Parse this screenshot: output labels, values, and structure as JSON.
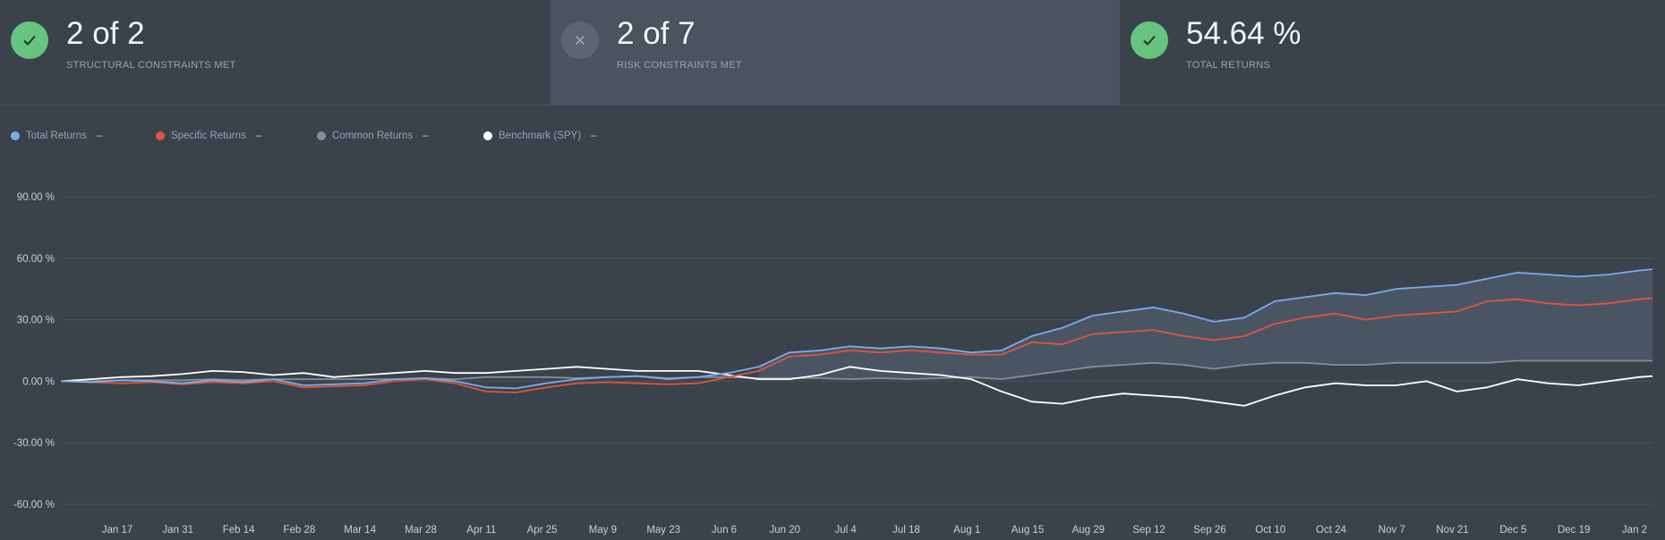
{
  "stats": [
    {
      "value": "2 of 2",
      "label": "STRUCTURAL CONSTRAINTS MET",
      "status": "pass",
      "icon": "check-icon"
    },
    {
      "value": "2 of 7",
      "label": "RISK CONSTRAINTS MET",
      "status": "fail",
      "icon": "x-icon"
    },
    {
      "value": "54.64 %",
      "label": "TOTAL RETURNS",
      "status": "pass",
      "icon": "check-icon"
    }
  ],
  "colors": {
    "pass_badge": "#66c47e",
    "fail_badge": "#5d6670",
    "total": "#7aacec",
    "specific": "#e0543c",
    "common": "#858e98",
    "benchmark": "#ffffff",
    "area_fill": "#4d5867",
    "grid": "#4a535d",
    "axis_text": "#c9cfd5"
  },
  "legend": [
    {
      "name": "Total Returns",
      "value": "–"
    },
    {
      "name": "Specific Returns",
      "value": "–"
    },
    {
      "name": "Common Returns",
      "value": "–"
    },
    {
      "name": "Benchmark (SPY)",
      "value": "–"
    }
  ],
  "chart_data": {
    "type": "line",
    "title": "",
    "xlabel": "",
    "ylabel": "",
    "ylim": [
      -60,
      90
    ],
    "y_ticks": [
      90,
      60,
      30,
      0,
      -30,
      -60
    ],
    "y_tick_labels": [
      "90.00 %",
      "60.00 %",
      "30.00 %",
      "0.00 %",
      "-30.00 %",
      "-60.00 %"
    ],
    "x_tick_labels": [
      "Jan 17",
      "Jan 31",
      "Feb 14",
      "Feb 28",
      "Mar 14",
      "Mar 28",
      "Apr 11",
      "Apr 25",
      "May 9",
      "May 23",
      "Jun 6",
      "Jun 20",
      "Jul 4",
      "Jul 18",
      "Aug 1",
      "Aug 15",
      "Aug 29",
      "Sep 12",
      "Sep 26",
      "Oct 10",
      "Oct 24",
      "Nov 7",
      "Nov 21",
      "Dec 5",
      "Dec 19",
      "Jan 2"
    ],
    "x_dates": [
      "Jan 4",
      "Jan 11",
      "Jan 18",
      "Jan 25",
      "Feb 1",
      "Feb 8",
      "Feb 15",
      "Feb 22",
      "Mar 1",
      "Mar 8",
      "Mar 15",
      "Mar 22",
      "Mar 29",
      "Apr 5",
      "Apr 12",
      "Apr 19",
      "Apr 26",
      "May 3",
      "May 10",
      "May 17",
      "May 24",
      "May 31",
      "Jun 7",
      "Jun 14",
      "Jun 21",
      "Jun 28",
      "Jul 5",
      "Jul 12",
      "Jul 19",
      "Jul 26",
      "Aug 2",
      "Aug 9",
      "Aug 16",
      "Aug 23",
      "Aug 30",
      "Sep 6",
      "Sep 13",
      "Sep 20",
      "Sep 27",
      "Oct 4",
      "Oct 11",
      "Oct 18",
      "Oct 25",
      "Nov 1",
      "Nov 8",
      "Nov 15",
      "Nov 22",
      "Nov 29",
      "Dec 6",
      "Dec 13",
      "Dec 20",
      "Dec 27",
      "Jan 3",
      "Jan 7"
    ],
    "grid": true,
    "legend_position": "top-left",
    "series": [
      {
        "name": "Total Returns",
        "values": [
          0,
          -0.5,
          0.5,
          0,
          -1,
          0.5,
          -0.5,
          1,
          -2,
          -1.5,
          -1,
          1,
          1.5,
          0,
          -3,
          -3.5,
          -1,
          1,
          2,
          2.5,
          1,
          2,
          4,
          7,
          14,
          15,
          17,
          16,
          17,
          16,
          14,
          15,
          22,
          26,
          32,
          34,
          36,
          33,
          29,
          31,
          39,
          41,
          43,
          42,
          45,
          46,
          47,
          50,
          53,
          52,
          51,
          52,
          54,
          54.64
        ]
      },
      {
        "name": "Specific Returns",
        "values": [
          0,
          -0.5,
          -1,
          -0.5,
          -1.5,
          -0.5,
          -1,
          0,
          -3,
          -2.5,
          -2,
          0,
          1,
          -1,
          -5,
          -5.5,
          -3,
          -1,
          -0.5,
          -1,
          -1.5,
          -1,
          2,
          5,
          12,
          13,
          15,
          14,
          15,
          14,
          13,
          13,
          19,
          18,
          23,
          24,
          25,
          22,
          20,
          22,
          28,
          31,
          33,
          30,
          32,
          33,
          34,
          39,
          40,
          38,
          37,
          38,
          40,
          40.5
        ]
      },
      {
        "name": "Common Returns",
        "values": [
          0,
          0,
          0.5,
          0.5,
          0.5,
          1,
          0.5,
          1,
          1,
          1,
          1,
          1,
          1.5,
          1,
          2,
          2,
          2,
          1.5,
          2,
          2.5,
          1.5,
          2,
          2,
          1.5,
          1.5,
          1.5,
          1,
          1.5,
          1,
          1.5,
          2,
          1,
          3,
          5,
          7,
          8,
          9,
          8,
          6,
          8,
          9,
          9,
          8,
          8,
          9,
          9,
          9,
          9,
          10,
          10,
          10,
          10,
          10,
          10
        ]
      },
      {
        "name": "Benchmark (SPY)",
        "values": [
          0,
          1,
          2,
          2.5,
          3.5,
          5,
          4.5,
          3,
          4,
          2,
          3,
          4,
          5,
          4,
          4,
          5,
          6,
          7,
          6,
          5,
          5,
          5,
          3,
          1,
          1,
          3,
          7,
          5,
          4,
          3,
          1,
          -5,
          -10,
          -11,
          -8,
          -6,
          -7,
          -8,
          -10,
          -12,
          -7,
          -3,
          -1,
          -2,
          -2,
          0,
          -5,
          -3,
          1,
          -1,
          -2,
          0,
          2,
          2.5
        ]
      }
    ]
  }
}
